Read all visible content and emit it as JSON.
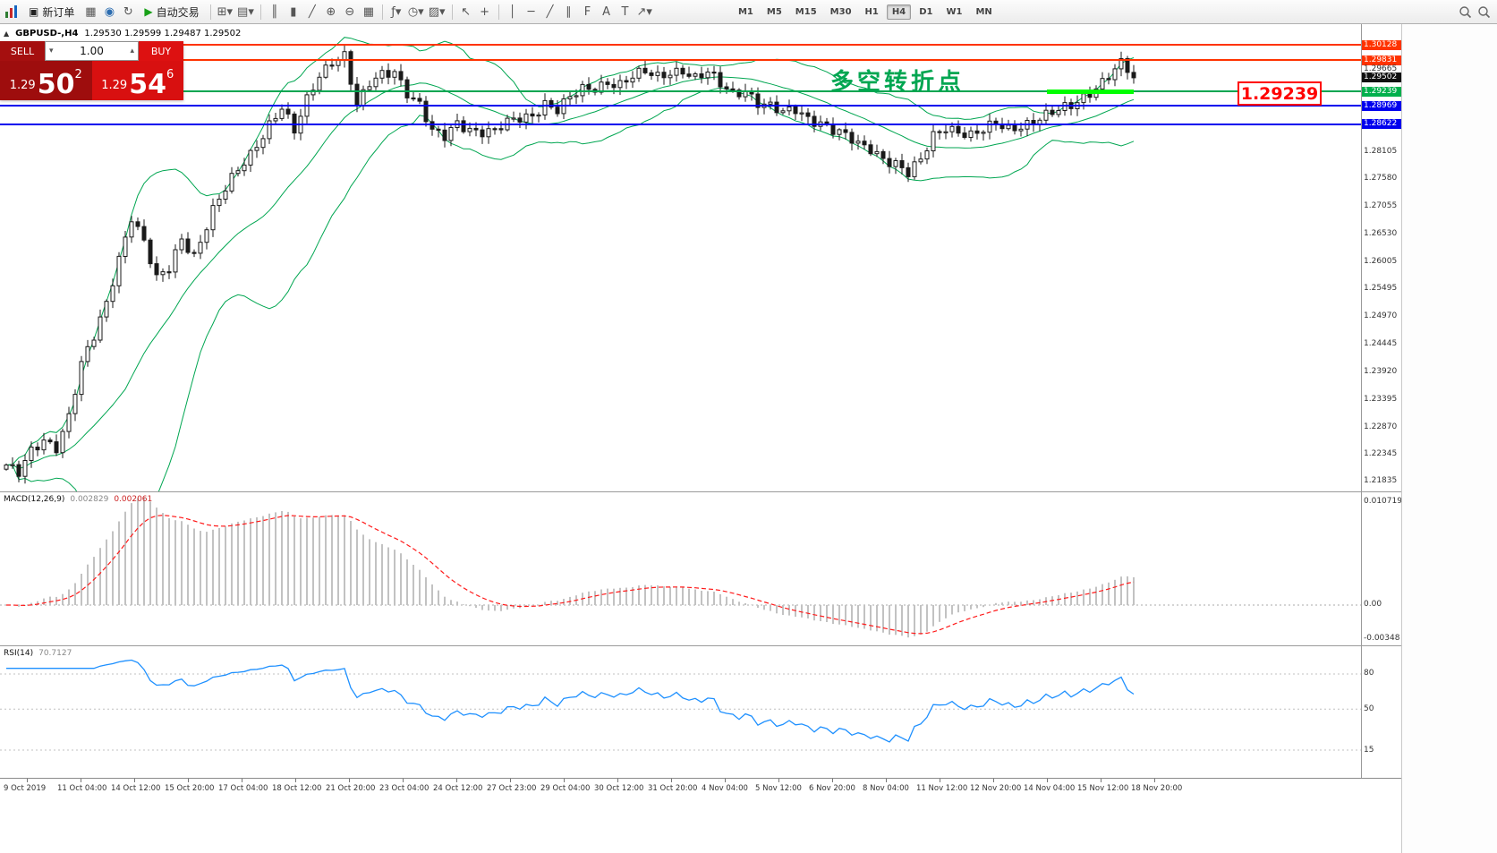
{
  "toolbar": {
    "items": [
      {
        "t": "appicon",
        "name": "app-icon"
      },
      {
        "t": "button",
        "name": "new-order-button",
        "g": "▣",
        "label": "新订单"
      },
      {
        "t": "icon",
        "name": "charts-window-icon",
        "g": "▦"
      },
      {
        "t": "icon",
        "name": "profiles-icon",
        "g": "◉",
        "color": "#2b6cb0"
      },
      {
        "t": "icon",
        "name": "refresh-icon",
        "g": "↻"
      },
      {
        "t": "button",
        "name": "autotrade-button",
        "g": "▶",
        "label": "自动交易",
        "gcolor": "#18a018"
      },
      {
        "t": "sep"
      },
      {
        "t": "icon",
        "name": "new-chart-icon",
        "g": "⊞▾"
      },
      {
        "t": "icon",
        "name": "profiles-menu-icon",
        "g": "▤▾"
      },
      {
        "t": "sep"
      },
      {
        "t": "icon",
        "name": "bar-chart-type-icon",
        "g": "║"
      },
      {
        "t": "icon",
        "name": "candlestick-type-icon",
        "g": "▮"
      },
      {
        "t": "icon",
        "name": "line-chart-type-icon",
        "g": "╱"
      },
      {
        "t": "icon",
        "name": "zoom-in-icon",
        "g": "⊕"
      },
      {
        "t": "icon",
        "name": "zoom-out-icon",
        "g": "⊖"
      },
      {
        "t": "icon",
        "name": "tile-windows-icon",
        "g": "▦"
      },
      {
        "t": "sep"
      },
      {
        "t": "icon",
        "name": "indicators-icon",
        "g": "ƒ▾"
      },
      {
        "t": "icon",
        "name": "periods-menu-icon",
        "g": "◷▾"
      },
      {
        "t": "icon",
        "name": "templates-icon",
        "g": "▨▾"
      },
      {
        "t": "sep"
      },
      {
        "t": "icon",
        "name": "cursor-icon",
        "g": "↖"
      },
      {
        "t": "icon",
        "name": "crosshair-icon",
        "g": "+"
      },
      {
        "t": "sep"
      },
      {
        "t": "icon",
        "name": "vertical-line-icon",
        "g": "│"
      },
      {
        "t": "icon",
        "name": "horizontal-line-icon",
        "g": "─"
      },
      {
        "t": "icon",
        "name": "trendline-icon",
        "g": "╱"
      },
      {
        "t": "icon",
        "name": "equidistant-channel-icon",
        "g": "∥"
      },
      {
        "t": "icon",
        "name": "fibonacci-icon",
        "g": "F"
      },
      {
        "t": "icon",
        "name": "text-icon",
        "g": "A"
      },
      {
        "t": "icon",
        "name": "text-label-icon",
        "g": "T"
      },
      {
        "t": "icon",
        "name": "arrows-icon",
        "g": "↗▾"
      },
      {
        "t": "gap"
      },
      {
        "t": "tf",
        "name": "timeframe-m1",
        "label": "M1"
      },
      {
        "t": "tf",
        "name": "timeframe-m5",
        "label": "M5"
      },
      {
        "t": "tf",
        "name": "timeframe-m15",
        "label": "M15"
      },
      {
        "t": "tf",
        "name": "timeframe-m30",
        "label": "M30"
      },
      {
        "t": "tf",
        "name": "timeframe-h1",
        "label": "H1"
      },
      {
        "t": "tf",
        "name": "timeframe-h4",
        "label": "H4",
        "active": true
      },
      {
        "t": "tf",
        "name": "timeframe-d1",
        "label": "D1"
      },
      {
        "t": "tf",
        "name": "timeframe-w1",
        "label": "W1"
      },
      {
        "t": "tf",
        "name": "timeframe-mn",
        "label": "MN"
      },
      {
        "t": "spacer"
      },
      {
        "t": "search",
        "name": "search-icon"
      },
      {
        "t": "search",
        "name": "find-symbol-icon"
      }
    ]
  },
  "chart": {
    "collapse_icon": "▲",
    "title": "GBPUSD-,H4",
    "ohlc": "1.29530 1.29599 1.29487 1.29502",
    "annotation": "多空转折点",
    "callout": "1.29239",
    "hlines": [
      {
        "price": 1.30128,
        "color": "#ff3300"
      },
      {
        "price": 1.29831,
        "color": "#ff3300"
      },
      {
        "price": 1.29239,
        "color": "#00a651"
      },
      {
        "price": 1.28969,
        "color": "#0000ee"
      },
      {
        "price": 1.28622,
        "color": "#0000ee"
      }
    ],
    "axis_labels": [
      {
        "text": "1.30128",
        "price": 1.30128,
        "style": "red"
      },
      {
        "text": "1.29831",
        "price": 1.29831,
        "style": "red"
      },
      {
        "text": "1.29665",
        "price": 1.29665,
        "style": "plain"
      },
      {
        "text": "1.29502",
        "price": 1.29502,
        "style": "current"
      },
      {
        "text": "1.29239",
        "price": 1.29239,
        "style": "green"
      },
      {
        "text": "1.28969",
        "price": 1.28969,
        "style": "blue"
      },
      {
        "text": "1.28622",
        "price": 1.28622,
        "style": "blue"
      },
      {
        "text": "1.28105",
        "price": 1.28105,
        "style": "plain"
      },
      {
        "text": "1.27580",
        "price": 1.2758,
        "style": "plain"
      },
      {
        "text": "1.27055",
        "price": 1.27055,
        "style": "plain"
      },
      {
        "text": "1.26530",
        "price": 1.2653,
        "style": "plain"
      },
      {
        "text": "1.26005",
        "price": 1.26005,
        "style": "plain"
      },
      {
        "text": "1.25495",
        "price": 1.25495,
        "style": "plain"
      },
      {
        "text": "1.24970",
        "price": 1.2497,
        "style": "plain"
      },
      {
        "text": "1.24445",
        "price": 1.24445,
        "style": "plain"
      },
      {
        "text": "1.23920",
        "price": 1.2392,
        "style": "plain"
      },
      {
        "text": "1.23395",
        "price": 1.23395,
        "style": "plain"
      },
      {
        "text": "1.22870",
        "price": 1.2287,
        "style": "plain"
      },
      {
        "text": "1.22345",
        "price": 1.22345,
        "style": "plain"
      },
      {
        "text": "1.21835",
        "price": 1.21835,
        "style": "plain"
      }
    ]
  },
  "trade": {
    "sell_label": "SELL",
    "buy_label": "BUY",
    "volume": "1.00",
    "vol_down_icon": "▾",
    "vol_up_icon": "▴",
    "sell_small": "1.29",
    "sell_big": "50",
    "sell_sup": "2",
    "buy_small": "1.29",
    "buy_big": "54",
    "buy_sup": "6"
  },
  "macd": {
    "label": "MACD(12,26,9)",
    "value_main": "0.002829",
    "value_signal": "0.002061",
    "axis_labels": [
      {
        "text": "0.010719",
        "v": 0.010719
      },
      {
        "text": "0.00",
        "v": 0
      },
      {
        "text": "-0.00348",
        "v": -0.00348
      }
    ]
  },
  "rsi": {
    "label": "RSI(14)",
    "value": "70.7127",
    "levels": [
      {
        "text": "80",
        "v": 80
      },
      {
        "text": "50",
        "v": 50
      },
      {
        "text": "15",
        "v": 15
      }
    ]
  },
  "time_axis": {
    "labels": [
      "9 Oct 2019",
      "11 Oct 04:00",
      "14 Oct 12:00",
      "15 Oct 20:00",
      "17 Oct 04:00",
      "18 Oct 12:00",
      "21 Oct 20:00",
      "23 Oct 04:00",
      "24 Oct 12:00",
      "27 Oct 23:00",
      "29 Oct 04:00",
      "30 Oct 12:00",
      "31 Oct 20:00",
      "4 Nov 04:00",
      "5 Nov 12:00",
      "6 Nov 20:00",
      "8 Nov 04:00",
      "11 Nov 12:00",
      "12 Nov 20:00",
      "14 Nov 04:00",
      "15 Nov 12:00",
      "18 Nov 20:00"
    ]
  },
  "chart_data": {
    "type": "candlestick",
    "symbol": "GBPUSD",
    "timeframe": "H4",
    "current_ohlc": {
      "open": 1.2953,
      "high": 1.29599,
      "low": 1.29487,
      "close": 1.29502
    },
    "candle_count": 181,
    "close_anchors": [
      [
        0,
        1.2215
      ],
      [
        2,
        1.2196
      ],
      [
        4,
        1.2238
      ],
      [
        6,
        1.2262
      ],
      [
        8,
        1.2252
      ],
      [
        10,
        1.231
      ],
      [
        12,
        1.2405
      ],
      [
        14,
        1.2455
      ],
      [
        16,
        1.252
      ],
      [
        18,
        1.261
      ],
      [
        20,
        1.269
      ],
      [
        22,
        1.264
      ],
      [
        24,
        1.2565
      ],
      [
        26,
        1.2585
      ],
      [
        28,
        1.2645
      ],
      [
        30,
        1.2615
      ],
      [
        33,
        1.27
      ],
      [
        36,
        1.2755
      ],
      [
        39,
        1.2805
      ],
      [
        42,
        1.2865
      ],
      [
        44,
        1.2895
      ],
      [
        46,
        1.2845
      ],
      [
        48,
        1.2905
      ],
      [
        50,
        1.2955
      ],
      [
        52,
        1.2985
      ],
      [
        54,
        1.2995
      ],
      [
        56,
        1.2895
      ],
      [
        58,
        1.2935
      ],
      [
        60,
        1.2955
      ],
      [
        62,
        1.2965
      ],
      [
        64,
        1.2925
      ],
      [
        66,
        1.29
      ],
      [
        68,
        1.2845
      ],
      [
        70,
        1.2835
      ],
      [
        72,
        1.2865
      ],
      [
        74,
        1.2855
      ],
      [
        76,
        1.285
      ],
      [
        78,
        1.2848
      ],
      [
        80,
        1.2862
      ],
      [
        82,
        1.2872
      ],
      [
        84,
        1.288
      ],
      [
        86,
        1.2905
      ],
      [
        88,
        1.289
      ],
      [
        90,
        1.291
      ],
      [
        92,
        1.2925
      ],
      [
        94,
        1.293
      ],
      [
        96,
        1.2945
      ],
      [
        98,
        1.294
      ],
      [
        100,
        1.2952
      ],
      [
        102,
        1.2958
      ],
      [
        104,
        1.295
      ],
      [
        106,
        1.2962
      ],
      [
        108,
        1.2968
      ],
      [
        110,
        1.295
      ],
      [
        112,
        1.2958
      ],
      [
        114,
        1.2935
      ],
      [
        116,
        1.292
      ],
      [
        118,
        1.293
      ],
      [
        120,
        1.2905
      ],
      [
        122,
        1.2895
      ],
      [
        124,
        1.288
      ],
      [
        126,
        1.2888
      ],
      [
        128,
        1.2875
      ],
      [
        130,
        1.2868
      ],
      [
        132,
        1.2852
      ],
      [
        134,
        1.2838
      ],
      [
        136,
        1.282
      ],
      [
        138,
        1.2815
      ],
      [
        140,
        1.28
      ],
      [
        142,
        1.279
      ],
      [
        144,
        1.2768
      ],
      [
        146,
        1.279
      ],
      [
        148,
        1.2838
      ],
      [
        150,
        1.2858
      ],
      [
        152,
        1.2852
      ],
      [
        154,
        1.2842
      ],
      [
        156,
        1.2848
      ],
      [
        158,
        1.286
      ],
      [
        160,
        1.2852
      ],
      [
        162,
        1.2862
      ],
      [
        164,
        1.287
      ],
      [
        166,
        1.2878
      ],
      [
        168,
        1.2885
      ],
      [
        170,
        1.2895
      ],
      [
        172,
        1.2915
      ],
      [
        174,
        1.2935
      ],
      [
        176,
        1.2955
      ],
      [
        178,
        1.2975
      ],
      [
        180,
        1.29502
      ]
    ],
    "overlays": {
      "bollinger": {
        "period": 20,
        "deviation": 2
      }
    },
    "indicators": [
      {
        "name": "MACD",
        "params": [
          12,
          26,
          9
        ],
        "values": [
          0.002829,
          0.002061
        ]
      },
      {
        "name": "RSI",
        "params": [
          14
        ],
        "value": 70.7127
      }
    ],
    "y_axis": {
      "top": 1.30519,
      "bottom": 1.21631
    },
    "macd_axis": {
      "max": 0.011744,
      "min": -0.004288
    },
    "rsi_axis": {
      "max": 103.7,
      "min": -9.46
    }
  }
}
